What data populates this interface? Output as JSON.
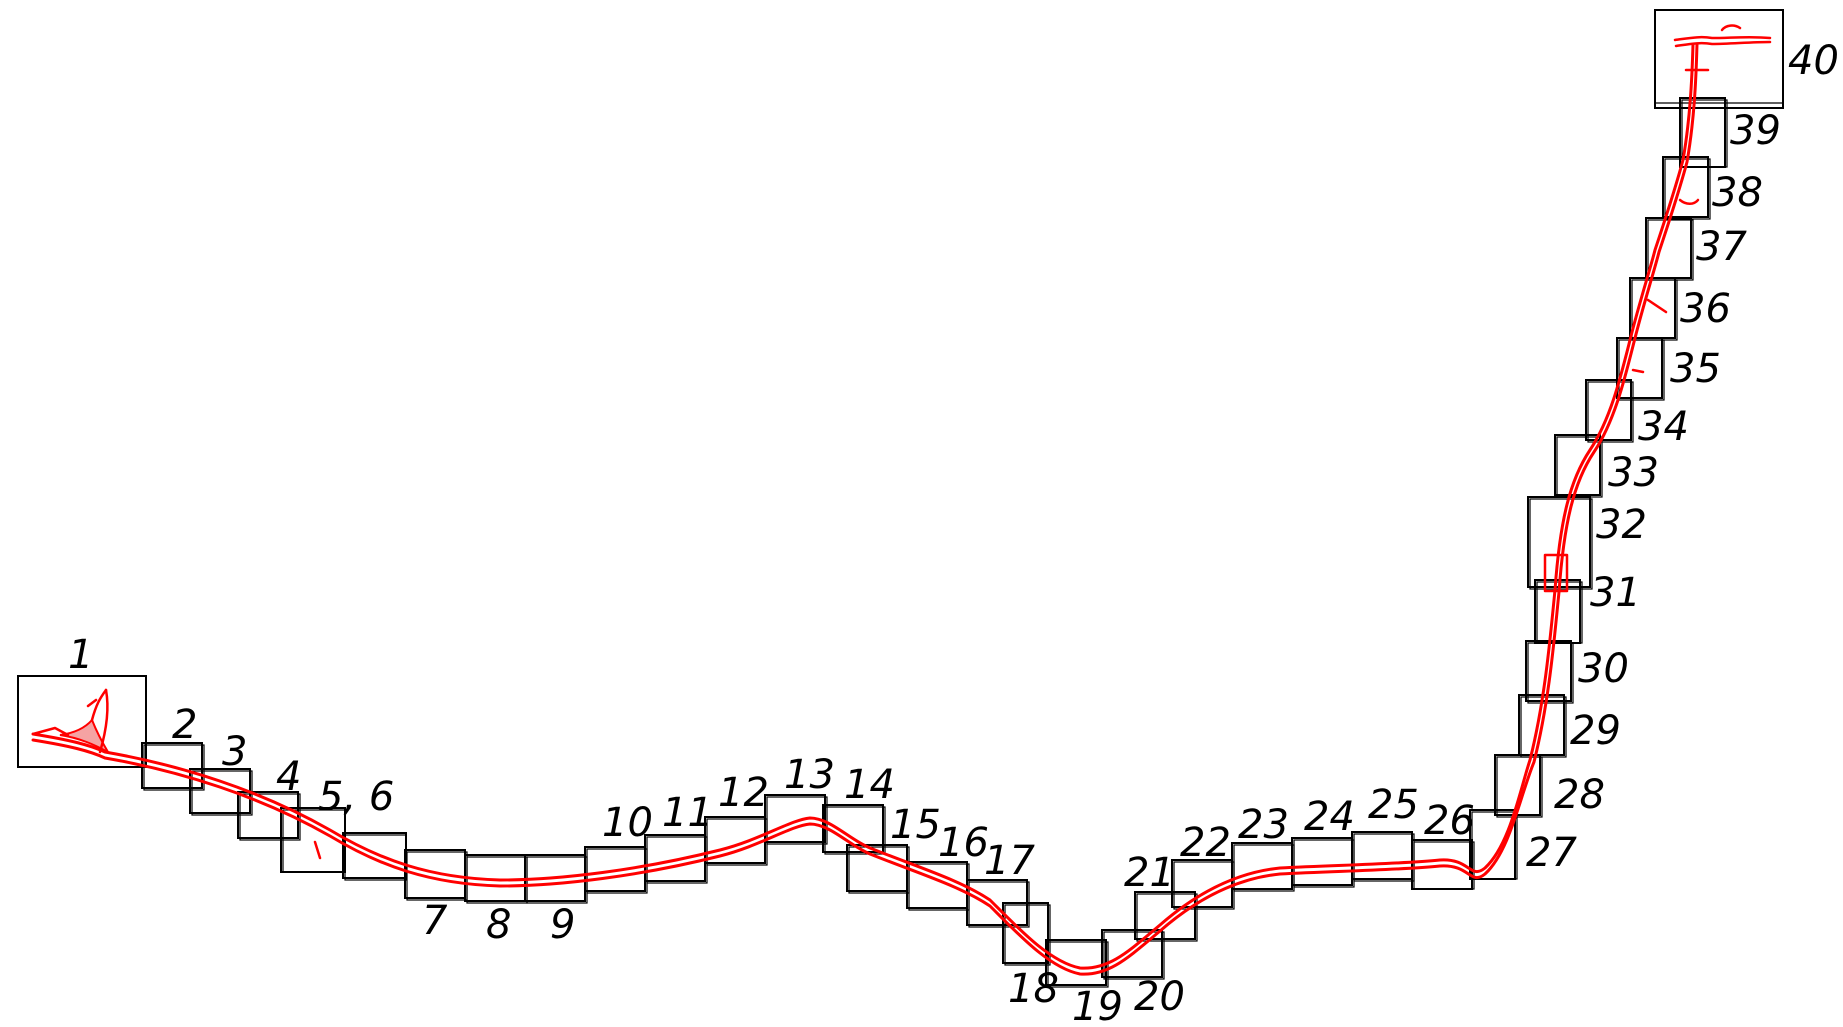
{
  "colors": {
    "route": "#ff0000",
    "sheet_border": "#000000",
    "background": "#ffffff"
  },
  "sheets": [
    {
      "n": "1"
    },
    {
      "n": "2"
    },
    {
      "n": "3"
    },
    {
      "n": "4"
    },
    {
      "n": "5, 6"
    },
    {
      "n": "7"
    },
    {
      "n": "8"
    },
    {
      "n": "9"
    },
    {
      "n": "10"
    },
    {
      "n": "11"
    },
    {
      "n": "12"
    },
    {
      "n": "13"
    },
    {
      "n": "14"
    },
    {
      "n": "15"
    },
    {
      "n": "16"
    },
    {
      "n": "17"
    },
    {
      "n": "18"
    },
    {
      "n": "19"
    },
    {
      "n": "20"
    },
    {
      "n": "21"
    },
    {
      "n": "22"
    },
    {
      "n": "23"
    },
    {
      "n": "24"
    },
    {
      "n": "25"
    },
    {
      "n": "26"
    },
    {
      "n": "27"
    },
    {
      "n": "28"
    },
    {
      "n": "29"
    },
    {
      "n": "30"
    },
    {
      "n": "31"
    },
    {
      "n": "32"
    },
    {
      "n": "33"
    },
    {
      "n": "34"
    },
    {
      "n": "35"
    },
    {
      "n": "36"
    },
    {
      "n": "37"
    },
    {
      "n": "38"
    },
    {
      "n": "39"
    },
    {
      "n": "40"
    }
  ]
}
